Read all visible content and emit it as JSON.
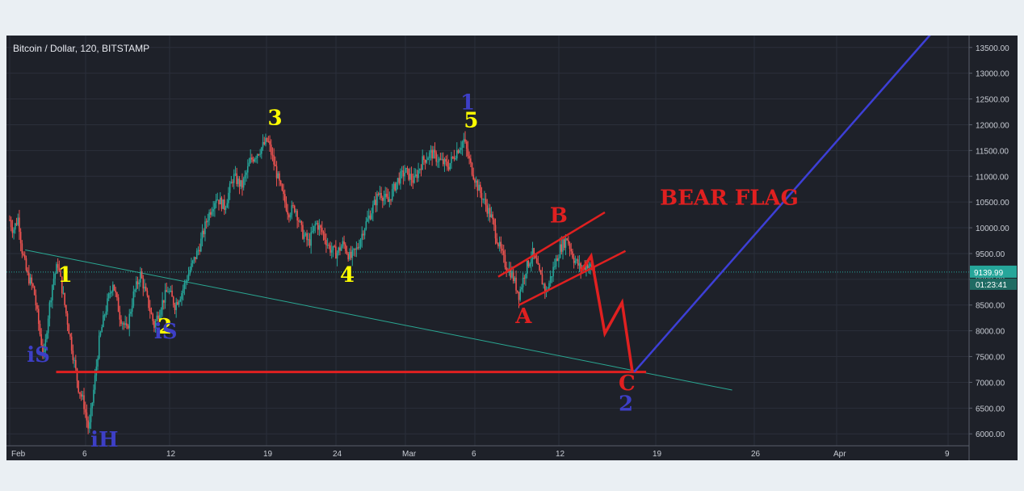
{
  "chart_data": {
    "type": "candlestick",
    "title": "Bitcoin / Dollar, 120, BITSTAMP",
    "xlabel": "",
    "ylabel": "",
    "ylim": [
      5800,
      13700
    ],
    "y_ticks": [
      6000,
      6500,
      7000,
      7500,
      8000,
      8500,
      9000,
      9500,
      10000,
      10500,
      11000,
      11500,
      12000,
      12500,
      13000,
      13500
    ],
    "x_ticks": [
      "Feb",
      "6",
      "12",
      "19",
      "24",
      "Mar",
      "6",
      "12",
      "19",
      "26",
      "Apr",
      "9"
    ],
    "grid": true,
    "current_price": "9139.99",
    "countdown": "01:23:41",
    "price_path": [
      {
        "t": 0,
        "p": 10150
      },
      {
        "t": 0.2,
        "p": 9950
      },
      {
        "t": 0.5,
        "p": 10200
      },
      {
        "t": 0.7,
        "p": 9600
      },
      {
        "t": 1,
        "p": 9100
      },
      {
        "t": 1.4,
        "p": 8800
      },
      {
        "t": 1.8,
        "p": 7850
      },
      {
        "t": 2.0,
        "p": 7500
      },
      {
        "t": 2.2,
        "p": 8200
      },
      {
        "t": 2.5,
        "p": 8950
      },
      {
        "t": 2.8,
        "p": 9300
      },
      {
        "t": 3.2,
        "p": 8500
      },
      {
        "t": 3.6,
        "p": 7700
      },
      {
        "t": 4.0,
        "p": 6900
      },
      {
        "t": 4.3,
        "p": 6600
      },
      {
        "t": 4.6,
        "p": 6050
      },
      {
        "t": 4.9,
        "p": 6900
      },
      {
        "t": 5.2,
        "p": 7800
      },
      {
        "t": 5.5,
        "p": 8300
      },
      {
        "t": 5.8,
        "p": 8700
      },
      {
        "t": 6.0,
        "p": 8950
      },
      {
        "t": 6.4,
        "p": 8300
      },
      {
        "t": 6.8,
        "p": 8000
      },
      {
        "t": 7.2,
        "p": 8700
      },
      {
        "t": 7.6,
        "p": 9100
      },
      {
        "t": 8.0,
        "p": 8600
      },
      {
        "t": 8.4,
        "p": 8100
      },
      {
        "t": 8.8,
        "p": 8500
      },
      {
        "t": 9.2,
        "p": 8800
      },
      {
        "t": 9.6,
        "p": 8500
      },
      {
        "t": 10.0,
        "p": 8750
      },
      {
        "t": 10.5,
        "p": 9200
      },
      {
        "t": 11.0,
        "p": 9600
      },
      {
        "t": 11.5,
        "p": 10200
      },
      {
        "t": 12.0,
        "p": 10600
      },
      {
        "t": 12.5,
        "p": 10400
      },
      {
        "t": 13.0,
        "p": 11000
      },
      {
        "t": 13.5,
        "p": 10800
      },
      {
        "t": 14.0,
        "p": 11300
      },
      {
        "t": 14.5,
        "p": 11500
      },
      {
        "t": 15.0,
        "p": 11700
      },
      {
        "t": 15.4,
        "p": 11200
      },
      {
        "t": 15.8,
        "p": 10700
      },
      {
        "t": 16.2,
        "p": 10300
      },
      {
        "t": 16.6,
        "p": 10400
      },
      {
        "t": 17.0,
        "p": 9900
      },
      {
        "t": 17.4,
        "p": 9700
      },
      {
        "t": 17.8,
        "p": 10100
      },
      {
        "t": 18.2,
        "p": 9900
      },
      {
        "t": 18.6,
        "p": 9600
      },
      {
        "t": 19.0,
        "p": 9500
      },
      {
        "t": 19.4,
        "p": 9700
      },
      {
        "t": 19.8,
        "p": 9400
      },
      {
        "t": 20.2,
        "p": 9600
      },
      {
        "t": 20.6,
        "p": 10000
      },
      {
        "t": 21.0,
        "p": 10300
      },
      {
        "t": 21.5,
        "p": 10700
      },
      {
        "t": 22.0,
        "p": 10500
      },
      {
        "t": 22.5,
        "p": 10900
      },
      {
        "t": 23.0,
        "p": 11100
      },
      {
        "t": 23.5,
        "p": 10900
      },
      {
        "t": 24.0,
        "p": 11300
      },
      {
        "t": 24.5,
        "p": 11450
      },
      {
        "t": 25.0,
        "p": 11300
      },
      {
        "t": 25.5,
        "p": 11200
      },
      {
        "t": 26.0,
        "p": 11500
      },
      {
        "t": 26.4,
        "p": 11700
      },
      {
        "t": 26.8,
        "p": 11200
      },
      {
        "t": 27.2,
        "p": 10800
      },
      {
        "t": 27.6,
        "p": 10500
      },
      {
        "t": 28.0,
        "p": 10200
      },
      {
        "t": 28.4,
        "p": 9700
      },
      {
        "t": 28.8,
        "p": 9300
      },
      {
        "t": 29.2,
        "p": 9100
      },
      {
        "t": 29.6,
        "p": 8700
      },
      {
        "t": 30.0,
        "p": 9200
      },
      {
        "t": 30.4,
        "p": 9500
      },
      {
        "t": 30.8,
        "p": 9100
      },
      {
        "t": 31.2,
        "p": 8750
      },
      {
        "t": 31.6,
        "p": 9200
      },
      {
        "t": 32.0,
        "p": 9600
      },
      {
        "t": 32.4,
        "p": 9800
      },
      {
        "t": 32.8,
        "p": 9400
      },
      {
        "t": 33.2,
        "p": 9200
      },
      {
        "t": 33.6,
        "p": 9300
      },
      {
        "t": 34.0,
        "p": 9140
      }
    ],
    "annotations": [
      {
        "text": "1",
        "color": "#ffff00",
        "x": 2.8,
        "y": 8950
      },
      {
        "text": "2",
        "color": "#ffff00",
        "x": 8.6,
        "y": 7950
      },
      {
        "text": "3",
        "color": "#ffff00",
        "x": 15.0,
        "y": 12000
      },
      {
        "text": "4",
        "color": "#ffff00",
        "x": 19.2,
        "y": 8950
      },
      {
        "text": "5",
        "color": "#ffff00",
        "x": 26.4,
        "y": 11950
      },
      {
        "text": "1",
        "color": "#3d3fc6",
        "x": 26.2,
        "y": 12300
      },
      {
        "text": "iS",
        "color": "#3d3fc6",
        "x": 1.0,
        "y": 7400
      },
      {
        "text": "iS",
        "color": "#3d3fc6",
        "x": 8.4,
        "y": 7850
      },
      {
        "text": "iH",
        "color": "#3d3fc6",
        "x": 4.7,
        "y": 5750
      },
      {
        "text": "A",
        "color": "#e02020",
        "x": 29.4,
        "y": 8150
      },
      {
        "text": "B",
        "color": "#e02020",
        "x": 31.4,
        "y": 10100
      },
      {
        "text": "C",
        "color": "#e02020",
        "x": 35.4,
        "y": 6850
      },
      {
        "text": "2",
        "color": "#3d3fc6",
        "x": 35.4,
        "y": 6450
      },
      {
        "text": "BEAR FLAG",
        "color": "#e02020",
        "x": 37.8,
        "y": 10450
      }
    ],
    "support_level": 7200,
    "colors": {
      "background": "#1e2129",
      "up": "#26a69a",
      "down": "#ef5350",
      "trendline": "#2aa893",
      "projection_blue": "#3d3fd6",
      "bear_red": "#e02020",
      "price_marker": "#26a69a"
    }
  }
}
